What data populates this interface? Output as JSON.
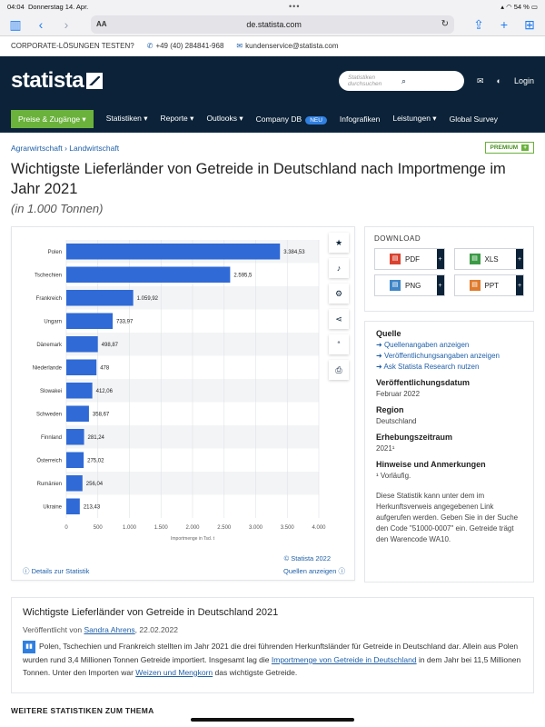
{
  "statusbar": {
    "time": "04:04",
    "date": "Donnerstag 14. Apr.",
    "dots": "•••",
    "battery": "54 %"
  },
  "browser": {
    "aa": "AA",
    "url": "de.statista.com"
  },
  "corpbar": {
    "cta": "CORPORATE-LÖSUNGEN TESTEN?",
    "phone": "+49 (40) 284841-968",
    "email": "kundenservice@statista.com"
  },
  "header": {
    "logo": "statista",
    "search_placeholder": "Statistiken durchsuchen",
    "login": "Login"
  },
  "nav": {
    "items": [
      "Preise & Zugänge",
      "Statistiken",
      "Reporte",
      "Outlooks",
      "Company DB",
      "Infografiken",
      "Leistungen",
      "Global Survey"
    ],
    "badge": "NEU"
  },
  "breadcrumb": {
    "a": "Agrarwirtschaft",
    "sep": "›",
    "b": "Landwirtschaft"
  },
  "premium": "PREMIUM",
  "title": "Wichtigste Lieferländer von Getreide in Deutschland nach Importmenge im Jahr 2021",
  "subtitle": "(in 1.000 Tonnen)",
  "chart_data": {
    "type": "bar",
    "orientation": "horizontal",
    "categories": [
      "Polen",
      "Tschechien",
      "Frankreich",
      "Ungarn",
      "Dänemark",
      "Niederlande",
      "Slowakei",
      "Schweden",
      "Finnland",
      "Österreich",
      "Rumänien",
      "Ukraine"
    ],
    "values": [
      3384.53,
      2595.5,
      1059.92,
      733.97,
      498.87,
      478,
      412.06,
      358.67,
      281.24,
      275.02,
      256.04,
      213.43
    ],
    "value_labels": [
      "3.384,53",
      "2.595,5",
      "1.059,92",
      "733,97",
      "498,87",
      "478",
      "412,06",
      "358,67",
      "281,24",
      "275,02",
      "256,04",
      "213,43"
    ],
    "xticks": [
      "0",
      "500",
      "1.000",
      "1.500",
      "2.000",
      "2.500",
      "3.000",
      "3.500",
      "4.000"
    ],
    "xlim": [
      0,
      4000
    ],
    "xlabel": "Importmenge in Tsd. t",
    "color": "#2f6ad6",
    "grid": true
  },
  "chart_footer": {
    "credit": "© Statista 2022",
    "details": "Details zur Statistik",
    "sources": "Quellen anzeigen"
  },
  "download": {
    "title": "DOWNLOAD",
    "buttons": [
      "PDF",
      "XLS",
      "PNG",
      "PPT"
    ],
    "plus": "+"
  },
  "info": {
    "source_h": "Quelle",
    "links": [
      "Quellenangaben anzeigen",
      "Veröffentlichungsangaben anzeigen",
      "Ask Statista Research nutzen"
    ],
    "pub_h": "Veröffentlichungsdatum",
    "pub_v": "Februar 2022",
    "region_h": "Region",
    "region_v": "Deutschland",
    "period_h": "Erhebungszeitraum",
    "period_v": "2021¹",
    "notes_h": "Hinweise und Anmerkungen",
    "notes_v": "¹ Vorläufig.",
    "note_text": "Diese Statistik kann unter dem im Herkunftsverweis angegebenen Link aufgerufen werden. Geben Sie in der Suche den Code \"51000-0007\" ein. Getreide trägt den Warencode WA10."
  },
  "desc": {
    "title": "Wichtigste Lieferländer von Getreide in Deutschland 2021",
    "meta_prefix": "Veröffentlicht von",
    "author": "Sandra Ahrens",
    "date": ", 22.02.2022",
    "t1": "Polen, Tschechien und Frankreich stellten im Jahr 2021 die drei führenden Herkunftsländer für Getreide in Deutschland dar. Allein aus Polen wurden rund 3,4 Millionen Tonnen Getreide importiert. Insgesamt lag die ",
    "link1": "Importmenge von Getreide in Deutschland",
    "t2": " in dem Jahr bei 11,5 Millionen Tonnen. Unter den Importen war ",
    "link2": "Weizen und Mengkorn",
    "t3": " das wichtigste Getreide."
  },
  "more": "WEITERE STATISTIKEN ZUM THEMA"
}
